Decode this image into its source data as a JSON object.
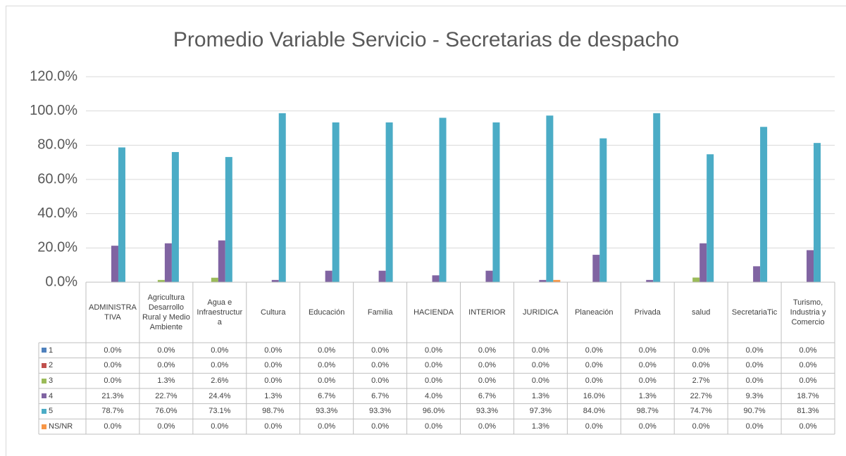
{
  "chart_data": {
    "type": "bar",
    "title": "Promedio Variable Servicio - Secretarias de despacho",
    "categories": [
      "ADMINISTRATIVA",
      "Agricultura Desarrollo Rural y Medio Ambiente",
      "Agua e Infraestructura",
      "Cultura",
      "Educación",
      "Familia",
      "HACIENDA",
      "INTERIOR",
      "JURIDICA",
      "Planeación",
      "Privada",
      "salud",
      "SecretariaTic",
      "Turismo, Industria y Comercio"
    ],
    "series": [
      {
        "name": "1",
        "color": "#4f81bd",
        "values": [
          0,
          0,
          0,
          0,
          0,
          0,
          0,
          0,
          0,
          0,
          0,
          0,
          0,
          0
        ],
        "value_labels": [
          "0.0%",
          "0.0%",
          "0.0%",
          "0.0%",
          "0.0%",
          "0.0%",
          "0.0%",
          "0.0%",
          "0.0%",
          "0.0%",
          "0.0%",
          "0.0%",
          "0.0%",
          "0.0%"
        ]
      },
      {
        "name": "2",
        "color": "#c0504d",
        "values": [
          0,
          0,
          0,
          0,
          0,
          0,
          0,
          0,
          0,
          0,
          0,
          0,
          0,
          0
        ],
        "value_labels": [
          "0.0%",
          "0.0%",
          "0.0%",
          "0.0%",
          "0.0%",
          "0.0%",
          "0.0%",
          "0.0%",
          "0.0%",
          "0.0%",
          "0.0%",
          "0.0%",
          "0.0%",
          "0.0%"
        ]
      },
      {
        "name": "3",
        "color": "#9bbb59",
        "values": [
          0,
          1.3,
          2.6,
          0,
          0,
          0,
          0,
          0,
          0,
          0,
          0,
          2.7,
          0,
          0
        ],
        "value_labels": [
          "0.0%",
          "1.3%",
          "2.6%",
          "0.0%",
          "0.0%",
          "0.0%",
          "0.0%",
          "0.0%",
          "0.0%",
          "0.0%",
          "0.0%",
          "2.7%",
          "0.0%",
          "0.0%"
        ]
      },
      {
        "name": "4",
        "color": "#8064a2",
        "values": [
          21.3,
          22.7,
          24.4,
          1.3,
          6.7,
          6.7,
          4.0,
          6.7,
          1.3,
          16.0,
          1.3,
          22.7,
          9.3,
          18.7
        ],
        "value_labels": [
          "21.3%",
          "22.7%",
          "24.4%",
          "1.3%",
          "6.7%",
          "6.7%",
          "4.0%",
          "6.7%",
          "1.3%",
          "16.0%",
          "1.3%",
          "22.7%",
          "9.3%",
          "18.7%"
        ]
      },
      {
        "name": "5",
        "color": "#4bacc6",
        "values": [
          78.7,
          76.0,
          73.1,
          98.7,
          93.3,
          93.3,
          96.0,
          93.3,
          97.3,
          84.0,
          98.7,
          74.7,
          90.7,
          81.3
        ],
        "value_labels": [
          "78.7%",
          "76.0%",
          "73.1%",
          "98.7%",
          "93.3%",
          "93.3%",
          "96.0%",
          "93.3%",
          "97.3%",
          "84.0%",
          "98.7%",
          "74.7%",
          "90.7%",
          "81.3%"
        ]
      },
      {
        "name": "NS/NR",
        "color": "#f79646",
        "values": [
          0,
          0,
          0,
          0,
          0,
          0,
          0,
          0,
          1.3,
          0,
          0,
          0,
          0,
          0
        ],
        "value_labels": [
          "0.0%",
          "0.0%",
          "0.0%",
          "0.0%",
          "0.0%",
          "0.0%",
          "0.0%",
          "0.0%",
          "1.3%",
          "0.0%",
          "0.0%",
          "0.0%",
          "0.0%",
          "0.0%"
        ]
      }
    ],
    "ylim": [
      0,
      120
    ],
    "yticks": [
      {
        "value": 0,
        "label": "0.0%"
      },
      {
        "value": 20,
        "label": "20.0%"
      },
      {
        "value": 40,
        "label": "40.0%"
      },
      {
        "value": 60,
        "label": "60.0%"
      },
      {
        "value": 80,
        "label": "80.0%"
      },
      {
        "value": 100,
        "label": "100.0%"
      },
      {
        "value": 120,
        "label": "120.0%"
      }
    ],
    "grid": true
  }
}
